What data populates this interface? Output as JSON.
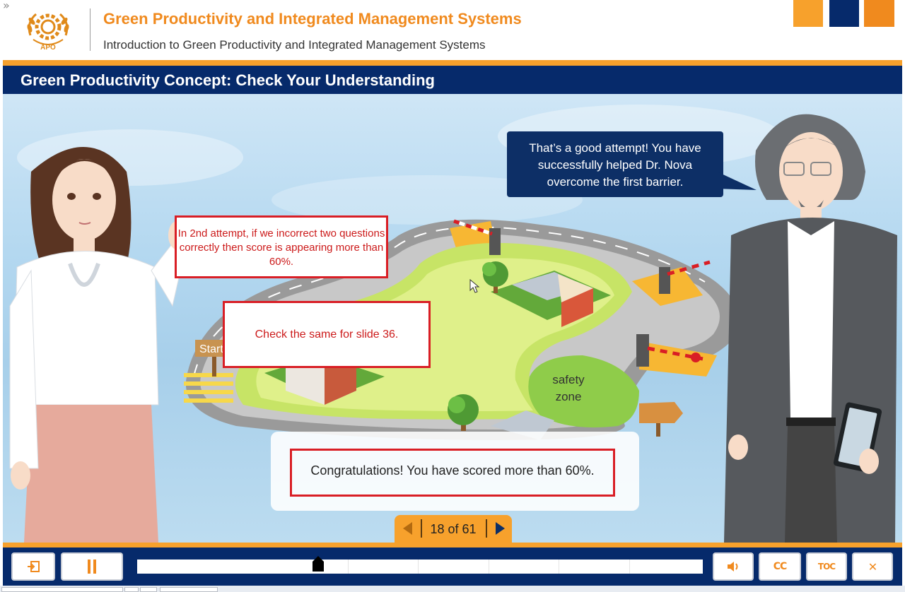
{
  "header": {
    "collapse_glyph": "»",
    "logo_text": "APO",
    "course_title": "Green Productivity and Integrated Management Systems",
    "course_subtitle": "Introduction to Green Productivity and Integrated Management Systems",
    "brand_colors": [
      "#f7a12c",
      "#062a6b",
      "#f08a1e"
    ]
  },
  "slide": {
    "title": "Green Productivity Concept: Check Your Understanding",
    "speech_bubble": "That’s a good attempt! You have successfully helped Dr. Nova overcome the first barrier.",
    "start_sign": "Start",
    "safety_zone_line1": "safety",
    "safety_zone_line2": "zone",
    "feedback": "Congratulations! You have scored more than 60%."
  },
  "review_notes": {
    "note1": "In 2nd attempt, if we incorrect two questions correctly then score is appearing more than 60%.",
    "note2": "Check the same for slide 36."
  },
  "pager": {
    "text": "18 of 61",
    "prev_icon": "triangle-left-icon",
    "next_icon": "triangle-right-icon"
  },
  "player": {
    "exit_icon": "exit-icon",
    "pause_icon": "pause-icon",
    "volume_icon": "speaker-icon",
    "cc_label": "CC",
    "toc_label": "TOC",
    "close_label": "✕",
    "progress": 0.32
  },
  "colors": {
    "accent_orange": "#f7a12c",
    "navy": "#062a6b",
    "review_red": "#d91e25",
    "title_orange": "#f08a1e"
  }
}
